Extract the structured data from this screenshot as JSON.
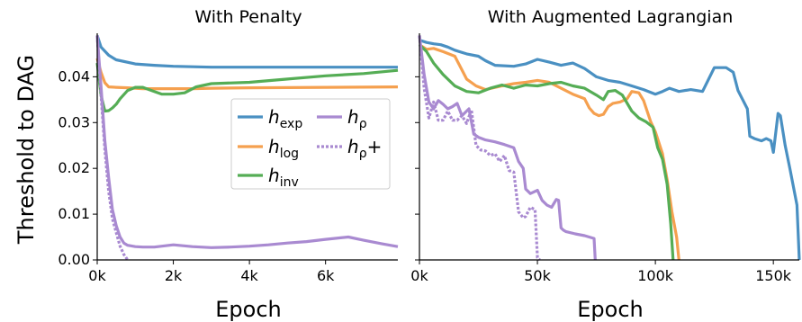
{
  "figure": {
    "ylabel": "Threshold to DAG"
  },
  "legend": {
    "items": [
      {
        "key": "h_exp",
        "base": "h",
        "sub": "exp",
        "color": "#4a90c2",
        "dash": false
      },
      {
        "key": "h_log",
        "base": "h",
        "sub": "log",
        "color": "#f5a04f",
        "dash": false
      },
      {
        "key": "h_inv",
        "base": "h",
        "sub": "inv",
        "color": "#55ad55",
        "dash": false
      },
      {
        "key": "h_rho",
        "base": "h",
        "sub": "ρ",
        "color": "#a98ad1",
        "dash": false
      },
      {
        "key": "h_rho_plus",
        "base": "h",
        "sub": "ρ",
        "suffix": "+",
        "color": "#a98ad1",
        "dash": true
      }
    ]
  },
  "chart_data": [
    {
      "type": "line",
      "title": "With Penalty",
      "xlabel": "Epoch",
      "ylabel": "Threshold to DAG",
      "xlim": [
        0,
        7900
      ],
      "ylim": [
        0,
        0.0495
      ],
      "xticks": [
        0,
        2000,
        4000,
        6000
      ],
      "xtick_labels": [
        "0k",
        "2k",
        "4k",
        "6k"
      ],
      "yticks": [
        0,
        0.01,
        0.02,
        0.03,
        0.04
      ],
      "ytick_labels": [
        "0.00",
        "0.01",
        "0.02",
        "0.03",
        "0.04"
      ],
      "series": [
        {
          "key": "h_exp",
          "x": [
            0,
            100,
            300,
            500,
            1000,
            1500,
            2000,
            3000,
            4000,
            6000,
            7900
          ],
          "y": [
            0.049,
            0.0465,
            0.0447,
            0.0437,
            0.0428,
            0.0425,
            0.0423,
            0.0421,
            0.0421,
            0.0421,
            0.0421
          ]
        },
        {
          "key": "h_log",
          "x": [
            0,
            100,
            200,
            300,
            500,
            800,
            1000,
            1200,
            1500,
            2000,
            2500,
            3000,
            4000,
            6000,
            7900
          ],
          "y": [
            0.044,
            0.041,
            0.0387,
            0.0378,
            0.0377,
            0.0376,
            0.0375,
            0.0374,
            0.0374,
            0.0374,
            0.0374,
            0.0375,
            0.0376,
            0.0377,
            0.0378
          ]
        },
        {
          "key": "h_inv",
          "x": [
            0,
            100,
            200,
            300,
            400,
            500,
            600,
            800,
            1000,
            1200,
            1500,
            1700,
            2000,
            2300,
            2600,
            3000,
            4000,
            5000,
            6000,
            7000,
            7900
          ],
          "y": [
            0.043,
            0.036,
            0.0325,
            0.0326,
            0.0332,
            0.034,
            0.0352,
            0.037,
            0.0377,
            0.0377,
            0.0368,
            0.0362,
            0.0362,
            0.0365,
            0.0378,
            0.0385,
            0.0388,
            0.0395,
            0.0402,
            0.0407,
            0.0414
          ]
        },
        {
          "key": "h_rho",
          "x": [
            0,
            100,
            200,
            300,
            400,
            500,
            600,
            700,
            800,
            1000,
            1200,
            1500,
            2000,
            2500,
            3000,
            3500,
            4000,
            4500,
            5000,
            5500,
            6000,
            6600,
            7000,
            7500,
            7900
          ],
          "y": [
            0.049,
            0.038,
            0.026,
            0.018,
            0.011,
            0.0075,
            0.005,
            0.0037,
            0.0032,
            0.0029,
            0.0028,
            0.0028,
            0.0033,
            0.0029,
            0.0027,
            0.0028,
            0.003,
            0.0033,
            0.0037,
            0.004,
            0.0045,
            0.005,
            0.0043,
            0.0035,
            0.0029
          ]
        },
        {
          "key": "h_rho_plus",
          "x": [
            0,
            100,
            200,
            300,
            400,
            500,
            600,
            700,
            800
          ],
          "y": [
            0.049,
            0.036,
            0.024,
            0.015,
            0.009,
            0.006,
            0.003,
            0.0012,
            0
          ]
        }
      ]
    },
    {
      "type": "line",
      "title": "With Augmented Lagrangian",
      "xlabel": "Epoch",
      "xlim": [
        0,
        161000
      ],
      "ylim": [
        0,
        0.0495
      ],
      "xticks": [
        0,
        50000,
        100000,
        150000
      ],
      "xtick_labels": [
        "0k",
        "50k",
        "100k",
        "150k"
      ],
      "yticks": [
        0,
        0.01,
        0.02,
        0.03,
        0.04
      ],
      "series": [
        {
          "key": "h_exp",
          "x": [
            0,
            3000,
            6000,
            9000,
            12000,
            15000,
            20000,
            25000,
            28000,
            32000,
            40000,
            45000,
            50000,
            55000,
            60000,
            65000,
            70000,
            75000,
            80000,
            85000,
            90000,
            95000,
            100000,
            103000,
            106000,
            110000,
            115000,
            120000,
            125000,
            130000,
            133000,
            135000,
            137000,
            139000,
            140000,
            142000,
            145000,
            147000,
            149000,
            150000,
            152000,
            153000,
            155000,
            157000,
            160000,
            161000
          ],
          "y": [
            0.048,
            0.0475,
            0.0472,
            0.047,
            0.0465,
            0.0458,
            0.045,
            0.0445,
            0.0435,
            0.0425,
            0.0423,
            0.0428,
            0.0438,
            0.0432,
            0.0425,
            0.043,
            0.0418,
            0.04,
            0.0392,
            0.0388,
            0.038,
            0.0372,
            0.0362,
            0.0368,
            0.0375,
            0.0368,
            0.0372,
            0.0368,
            0.042,
            0.042,
            0.041,
            0.037,
            0.035,
            0.033,
            0.027,
            0.0265,
            0.026,
            0.0265,
            0.026,
            0.0235,
            0.032,
            0.0315,
            0.025,
            0.02,
            0.012,
            0.0
          ]
        },
        {
          "key": "h_log",
          "x": [
            0,
            3000,
            6000,
            10000,
            15000,
            18000,
            20000,
            24000,
            28000,
            35000,
            40000,
            45000,
            50000,
            55000,
            60000,
            65000,
            70000,
            72000,
            74000,
            76000,
            78000,
            80000,
            82000,
            85000,
            88000,
            90000,
            93000,
            95000,
            98000,
            100000,
            103000,
            105000,
            107000,
            109000,
            110000
          ],
          "y": [
            0.047,
            0.046,
            0.0462,
            0.0455,
            0.0445,
            0.0415,
            0.0395,
            0.038,
            0.0372,
            0.038,
            0.0385,
            0.0388,
            0.0392,
            0.0388,
            0.0375,
            0.0362,
            0.0352,
            0.0332,
            0.032,
            0.0315,
            0.0318,
            0.0335,
            0.0342,
            0.0345,
            0.0352,
            0.0368,
            0.0365,
            0.0348,
            0.0302,
            0.028,
            0.0232,
            0.0175,
            0.0105,
            0.005,
            0.0
          ]
        },
        {
          "key": "h_inv",
          "x": [
            0,
            3000,
            6000,
            10000,
            15000,
            20000,
            25000,
            30000,
            35000,
            40000,
            45000,
            50000,
            55000,
            60000,
            65000,
            70000,
            75000,
            78000,
            80000,
            83000,
            86000,
            90000,
            93000,
            96000,
            99000,
            101000,
            103000,
            105000,
            106500,
            107500
          ],
          "y": [
            0.047,
            0.0455,
            0.043,
            0.0405,
            0.038,
            0.0368,
            0.0365,
            0.0375,
            0.0382,
            0.0375,
            0.0382,
            0.038,
            0.0385,
            0.0388,
            0.038,
            0.0375,
            0.036,
            0.035,
            0.0368,
            0.037,
            0.036,
            0.0325,
            0.031,
            0.0302,
            0.029,
            0.0245,
            0.022,
            0.0165,
            0.008,
            0.0
          ]
        },
        {
          "key": "h_rho",
          "x": [
            0,
            2000,
            4000,
            6000,
            8000,
            10000,
            12000,
            14000,
            16000,
            18000,
            20000,
            21000,
            23000,
            25000,
            28000,
            32000,
            36000,
            40000,
            42000,
            44000,
            45000,
            47000,
            50000,
            52000,
            54000,
            56000,
            58000,
            59000,
            60000,
            61000,
            62000,
            66000,
            70000,
            74000,
            74500
          ],
          "y": [
            0.049,
            0.0405,
            0.0345,
            0.033,
            0.0348,
            0.034,
            0.033,
            0.0335,
            0.0342,
            0.0315,
            0.0325,
            0.033,
            0.0275,
            0.0268,
            0.0262,
            0.0258,
            0.0252,
            0.0245,
            0.0215,
            0.02,
            0.0155,
            0.0145,
            0.0152,
            0.013,
            0.012,
            0.0115,
            0.0132,
            0.013,
            0.007,
            0.0065,
            0.0062,
            0.0057,
            0.0053,
            0.0047,
            0.0
          ]
        },
        {
          "key": "h_rho_plus",
          "x": [
            0,
            2000,
            4000,
            6000,
            8000,
            10000,
            12000,
            14000,
            16000,
            18000,
            20000,
            22000,
            24000,
            26000,
            28000,
            30000,
            32000,
            34000,
            36000,
            38000,
            40000,
            42000,
            44000,
            45000,
            47000,
            49000,
            50000,
            51000
          ],
          "y": [
            0.049,
            0.0375,
            0.031,
            0.0345,
            0.0305,
            0.0305,
            0.0325,
            0.0305,
            0.0305,
            0.0315,
            0.0298,
            0.0328,
            0.025,
            0.024,
            0.0238,
            0.0228,
            0.0232,
            0.0215,
            0.0228,
            0.0195,
            0.0192,
            0.0105,
            0.0092,
            0.0095,
            0.0115,
            0.011,
            0.0005,
            0.0
          ]
        }
      ]
    }
  ]
}
